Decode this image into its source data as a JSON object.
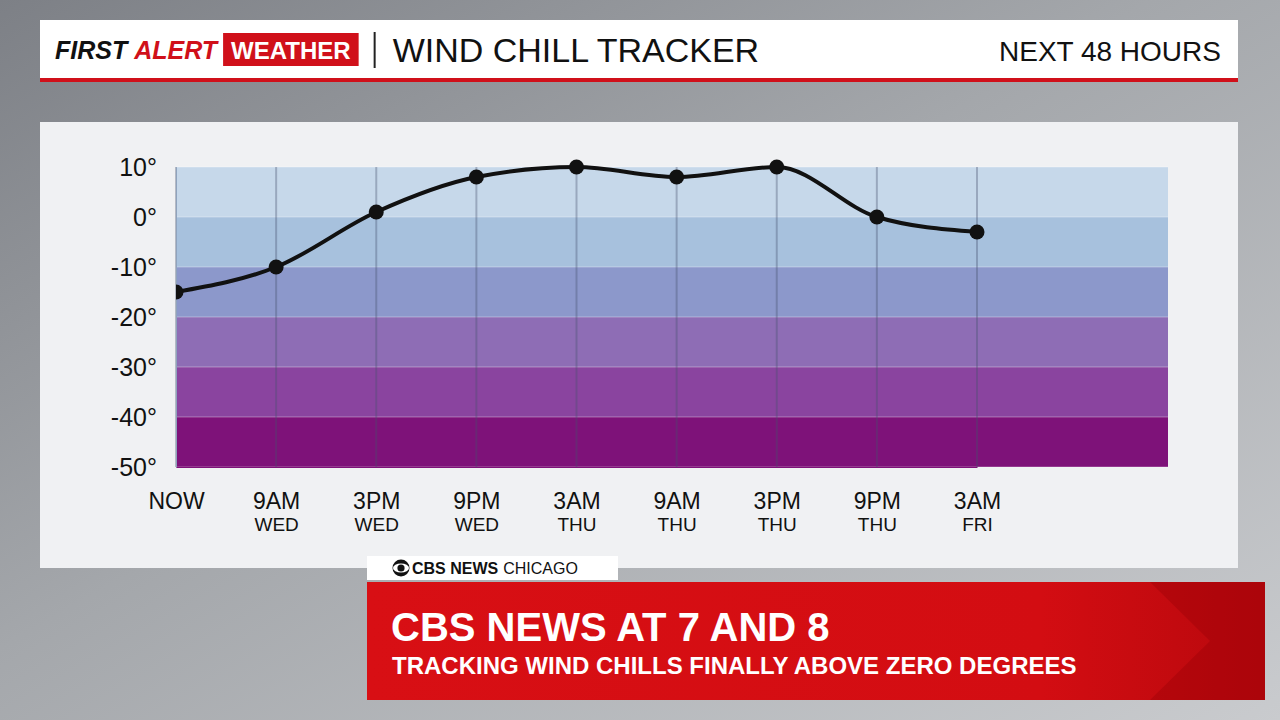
{
  "branding": {
    "first": "FIRST",
    "alert": "ALERT",
    "weather": "WEATHER"
  },
  "footer": {
    "network": "CBS NEWS",
    "station": "CHICAGO",
    "headline": "CBS NEWS AT 7 AND 8",
    "subhead": "TRACKING WIND CHILLS FINALLY ABOVE ZERO DEGREES"
  },
  "chart_data": {
    "type": "line",
    "title": "WIND CHILL TRACKER",
    "subtitle": "NEXT 48 HOURS",
    "categories": [
      "NOW",
      "9AM WED",
      "3PM WED",
      "9PM WED",
      "3AM THU",
      "9AM THU",
      "3PM THU",
      "9PM THU",
      "3AM FRI"
    ],
    "values": [
      -15,
      -10,
      1,
      8,
      10,
      8,
      10,
      0,
      -3
    ],
    "color": "#111111",
    "marker": "circle",
    "ylim": [
      -50,
      10
    ],
    "yticks": [
      {
        "value": 10,
        "label": "10°"
      },
      {
        "value": 0,
        "label": "0°"
      },
      {
        "value": -10,
        "label": "-10°"
      },
      {
        "value": -20,
        "label": "-20°"
      },
      {
        "value": -30,
        "label": "-30°"
      },
      {
        "value": -40,
        "label": "-40°"
      },
      {
        "value": -50,
        "label": "-50°"
      }
    ],
    "grid": true
  }
}
